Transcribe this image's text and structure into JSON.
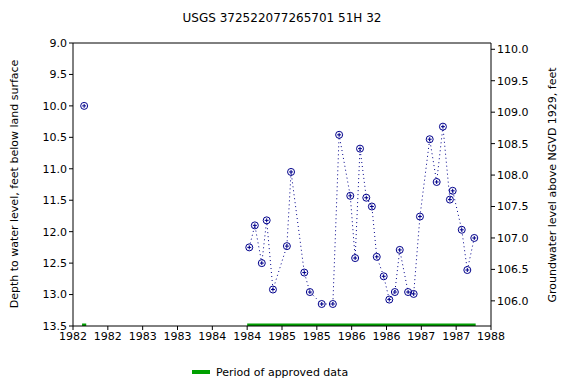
{
  "chart_data": {
    "type": "line",
    "title": "USGS 372522077265701 51H 32",
    "y_label": "Depth to water level, feet below land surface",
    "y2_label": "Groundwater level above NGVD 1929, feet",
    "color": "#00008b",
    "marker": "circle",
    "line_style": "dotted",
    "legend": "bottom",
    "xlim": [
      1982,
      1988
    ],
    "xticks": [
      1982,
      {
        "value": 1982.5,
        "label": "1982"
      },
      1983,
      {
        "value": 1983.5,
        "label": "1983"
      },
      1984,
      {
        "value": 1984.5,
        "label": "1984"
      },
      1985,
      {
        "value": 1985.5,
        "label": "1985"
      },
      1986,
      {
        "value": 1986.5,
        "label": "1986"
      },
      1987,
      {
        "value": 1987.5,
        "label": "1987"
      },
      1988
    ],
    "ylim": [
      9.0,
      13.5
    ],
    "yticks": [
      {
        "value": 9,
        "label": "9.0"
      },
      9.5,
      {
        "value": 10,
        "label": "10.0"
      },
      10.5,
      {
        "value": 11,
        "label": "11.0"
      },
      11.5,
      {
        "value": 12,
        "label": "12.0"
      },
      12.5,
      {
        "value": 13,
        "label": "13.0"
      },
      13.5
    ],
    "y2lim": [
      105.6,
      110.1
    ],
    "y2ticks": [
      {
        "value": 106,
        "label": "106.0"
      },
      106.5,
      {
        "value": 107,
        "label": "107.0"
      },
      107.5,
      {
        "value": 108,
        "label": "108.0"
      },
      108.5,
      {
        "value": 109,
        "label": "109.0"
      },
      109.5,
      {
        "value": 110,
        "label": "110.0"
      }
    ],
    "series": [
      {
        "x": [
          1982.16
        ],
        "values": [
          10.0
        ]
      },
      {
        "x": [
          1984.53,
          1984.61,
          1984.71,
          1984.78,
          1984.87,
          1985.07,
          1985.13,
          1985.32,
          1985.4,
          1985.57,
          1985.73,
          1985.82,
          1985.98,
          1986.05,
          1986.12,
          1986.21,
          1986.29,
          1986.36,
          1986.46,
          1986.54,
          1986.62,
          1986.69,
          1986.81,
          1986.89,
          1986.98,
          1987.12,
          1987.22,
          1987.31,
          1987.41,
          1987.45,
          1987.58,
          1987.66,
          1987.76
        ],
        "values": [
          12.25,
          11.9,
          12.5,
          11.82,
          12.92,
          12.23,
          11.05,
          12.65,
          12.96,
          13.15,
          13.15,
          10.46,
          11.43,
          12.42,
          10.68,
          11.46,
          11.6,
          12.4,
          12.71,
          13.08,
          12.96,
          12.29,
          12.96,
          12.99,
          11.76,
          10.53,
          11.21,
          10.33,
          11.49,
          11.35,
          11.97,
          12.61,
          12.1
        ]
      }
    ],
    "approved_periods": {
      "name": "Period of approved data",
      "color": "#00a000",
      "ranges": [
        [
          1982.13,
          1982.19
        ],
        [
          1984.5,
          1987.78
        ]
      ]
    }
  }
}
